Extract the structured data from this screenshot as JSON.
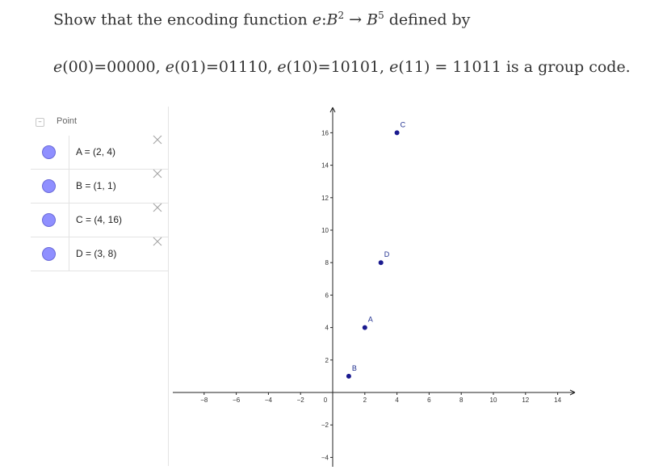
{
  "question": {
    "line1": {
      "prefix": "Show that the encoding function ",
      "e": "e",
      "colon": ":",
      "B": "B",
      "exp2": "2",
      "arrow": " → ",
      "B2": "B",
      "exp5": "5",
      "suffix": " defined by"
    },
    "line2": [
      {
        "e": "e",
        "rest": "(00)=00000, "
      },
      {
        "e": "e",
        "rest": "(01)=01110, "
      },
      {
        "e": "e",
        "rest": "(10)=10101, "
      },
      {
        "e": "e",
        "rest": "(11) = 11011 is a group code."
      }
    ]
  },
  "algebra": {
    "collapse_symbol": "–",
    "group_label": "Point",
    "rows": [
      {
        "definition": "A = (2, 4)"
      },
      {
        "definition": "B = (1, 1)"
      },
      {
        "definition": "C = (4, 16)"
      },
      {
        "definition": "D = (3, 8)"
      }
    ],
    "marble_color": "#8f8fff"
  },
  "chart_data": {
    "type": "scatter",
    "title": "",
    "xlabel": "",
    "ylabel": "",
    "xlim": [
      -9,
      16
    ],
    "ylim": [
      -4.5,
      18
    ],
    "x_ticks": [
      -8,
      -6,
      -4,
      -2,
      0,
      2,
      4,
      6,
      8,
      10,
      12,
      14
    ],
    "y_ticks": [
      -4,
      -2,
      2,
      4,
      6,
      8,
      10,
      12,
      14,
      16
    ],
    "grid": false,
    "point_color": "#1a1a8f",
    "points": [
      {
        "label": "A",
        "x": 2,
        "y": 4
      },
      {
        "label": "B",
        "x": 1,
        "y": 1
      },
      {
        "label": "C",
        "x": 4,
        "y": 16
      },
      {
        "label": "D",
        "x": 3,
        "y": 8
      }
    ]
  }
}
